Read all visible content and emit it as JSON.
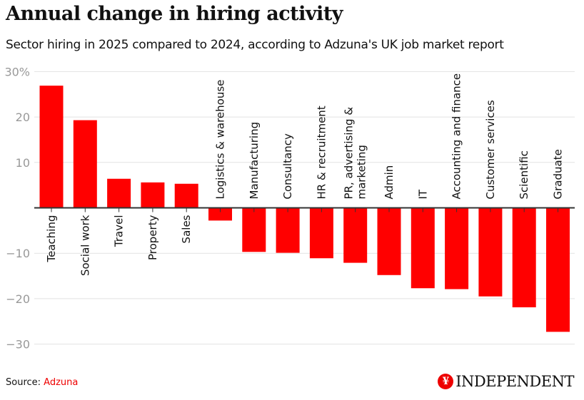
{
  "title": "Annual change in hiring activity",
  "subtitle": "Sector hiring in 2025 compared to 2024, according to Adzuna's UK job market report",
  "source_label": "Source:",
  "source_name": "Adzuna",
  "publisher": "INDEPENDENT",
  "bar_color": "#ff0000",
  "chart_data": {
    "type": "bar",
    "title": "Annual change in hiring activity",
    "xlabel": "",
    "ylabel": "",
    "ylim": [
      -30,
      30
    ],
    "yticks": [
      30,
      20,
      10,
      -10,
      -20,
      -30
    ],
    "ytick_labels": [
      "30%",
      "20",
      "10",
      "−10",
      "−20",
      "−30"
    ],
    "categories": [
      "Teaching",
      "Social work",
      "Travel",
      "Property",
      "Sales",
      "Logistics & warehouse",
      "Manufacturing",
      "Consultancy",
      "HR & recruitment",
      "PR, advertising & marketing",
      "Admin",
      "IT",
      "Accounting and finance",
      "Customer services",
      "Scientific",
      "Graduate"
    ],
    "values": [
      26.9,
      19.3,
      6.4,
      5.6,
      5.3,
      -2.8,
      -9.7,
      -9.9,
      -11.1,
      -12.1,
      -14.8,
      -17.7,
      -17.9,
      -19.5,
      -21.9,
      -27.3
    ]
  }
}
